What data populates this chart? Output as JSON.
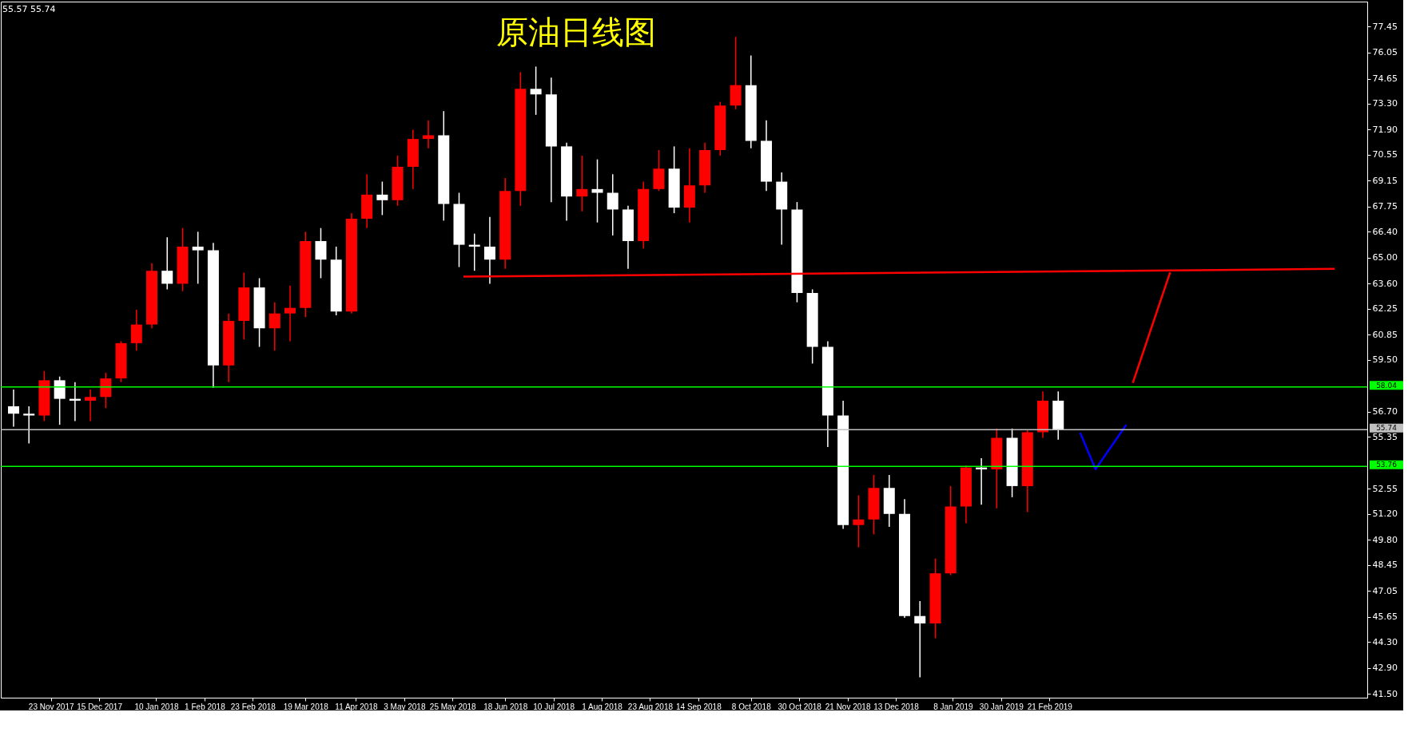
{
  "chart_data": {
    "type": "candlestick",
    "title": "原油日线图",
    "x": [
      "2017-11-06",
      "2017-11-13",
      "2017-11-20",
      "2017-11-27",
      "2017-12-04",
      "2017-12-11",
      "2017-12-18",
      "2017-12-25",
      "2018-01-01",
      "2018-01-08",
      "2018-01-15",
      "2018-01-22",
      "2018-01-29",
      "2018-02-05",
      "2018-02-12",
      "2018-02-19",
      "2018-02-26",
      "2018-03-05",
      "2018-03-12",
      "2018-03-19",
      "2018-03-26",
      "2018-04-02",
      "2018-04-09",
      "2018-04-16",
      "2018-04-23",
      "2018-04-30",
      "2018-05-07",
      "2018-05-14",
      "2018-05-21",
      "2018-05-28",
      "2018-06-04",
      "2018-06-11",
      "2018-06-18",
      "2018-06-25",
      "2018-07-02",
      "2018-07-09",
      "2018-07-16",
      "2018-07-23",
      "2018-07-30",
      "2018-08-06",
      "2018-08-13",
      "2018-08-20",
      "2018-08-27",
      "2018-09-03",
      "2018-09-10",
      "2018-09-17",
      "2018-09-24",
      "2018-10-01",
      "2018-10-08",
      "2018-10-15",
      "2018-10-22",
      "2018-10-29",
      "2018-11-05",
      "2018-11-12",
      "2018-11-19",
      "2018-11-26",
      "2018-12-03",
      "2018-12-10",
      "2018-12-17",
      "2018-12-24",
      "2018-12-31",
      "2019-01-07",
      "2019-01-14",
      "2019-01-21",
      "2019-01-28",
      "2019-02-04",
      "2019-02-11",
      "2019-02-18",
      "2019-02-25"
    ],
    "ohlc": [
      [
        57.0,
        57.9,
        55.9,
        56.6
      ],
      [
        56.6,
        57.0,
        55.0,
        56.5
      ],
      [
        56.5,
        58.9,
        56.2,
        58.4
      ],
      [
        58.4,
        58.6,
        56.0,
        57.4
      ],
      [
        57.4,
        58.3,
        56.2,
        57.3
      ],
      [
        57.3,
        57.9,
        56.2,
        57.5
      ],
      [
        57.5,
        58.8,
        56.9,
        58.5
      ],
      [
        58.5,
        60.5,
        58.3,
        60.4
      ],
      [
        60.4,
        62.2,
        60.0,
        61.4
      ],
      [
        61.4,
        64.7,
        61.2,
        64.3
      ],
      [
        64.3,
        66.1,
        63.3,
        63.6
      ],
      [
        63.6,
        66.6,
        63.2,
        65.6
      ],
      [
        65.6,
        66.4,
        63.6,
        65.4
      ],
      [
        65.4,
        65.8,
        58.0,
        59.2
      ],
      [
        59.2,
        62.0,
        58.3,
        61.6
      ],
      [
        61.6,
        64.2,
        60.6,
        63.4
      ],
      [
        63.4,
        63.9,
        60.2,
        61.2
      ],
      [
        61.2,
        62.6,
        60.0,
        62.0
      ],
      [
        62.0,
        63.5,
        60.5,
        62.3
      ],
      [
        62.3,
        66.4,
        61.8,
        65.9
      ],
      [
        65.9,
        66.6,
        63.9,
        64.9
      ],
      [
        64.9,
        65.6,
        61.9,
        62.1
      ],
      [
        62.1,
        67.4,
        62.0,
        67.1
      ],
      [
        67.1,
        69.5,
        66.6,
        68.4
      ],
      [
        68.4,
        69.1,
        67.3,
        68.1
      ],
      [
        68.1,
        70.5,
        67.8,
        69.9
      ],
      [
        69.9,
        71.9,
        68.7,
        71.4
      ],
      [
        71.4,
        72.4,
        70.9,
        71.6
      ],
      [
        71.6,
        72.9,
        67.0,
        67.9
      ],
      [
        67.9,
        68.5,
        64.5,
        65.7
      ],
      [
        65.7,
        66.3,
        64.3,
        65.6
      ],
      [
        65.6,
        67.2,
        63.6,
        64.9
      ],
      [
        64.9,
        69.3,
        64.4,
        68.6
      ],
      [
        68.6,
        75.0,
        67.8,
        74.1
      ],
      [
        74.1,
        75.3,
        72.7,
        73.8
      ],
      [
        73.8,
        74.7,
        68.0,
        71.0
      ],
      [
        71.0,
        71.2,
        67.0,
        68.3
      ],
      [
        68.3,
        70.5,
        67.5,
        68.7
      ],
      [
        68.7,
        70.3,
        66.9,
        68.5
      ],
      [
        68.5,
        69.5,
        66.2,
        67.6
      ],
      [
        67.6,
        67.8,
        64.4,
        65.9
      ],
      [
        65.9,
        69.1,
        65.5,
        68.7
      ],
      [
        68.7,
        70.8,
        68.6,
        69.8
      ],
      [
        69.8,
        71.0,
        67.4,
        67.7
      ],
      [
        67.7,
        70.9,
        66.9,
        68.9
      ],
      [
        68.9,
        71.2,
        68.5,
        70.8
      ],
      [
        70.8,
        73.4,
        70.5,
        73.2
      ],
      [
        73.2,
        76.9,
        73.0,
        74.3
      ],
      [
        74.3,
        75.9,
        70.9,
        71.3
      ],
      [
        71.3,
        72.4,
        68.6,
        69.1
      ],
      [
        69.1,
        69.6,
        65.7,
        67.6
      ],
      [
        67.6,
        68.0,
        62.6,
        63.1
      ],
      [
        63.1,
        63.3,
        59.3,
        60.2
      ],
      [
        60.2,
        60.5,
        54.8,
        56.5
      ],
      [
        56.5,
        57.3,
        50.4,
        50.6
      ],
      [
        50.6,
        52.2,
        49.4,
        50.9
      ],
      [
        50.9,
        53.3,
        50.1,
        52.6
      ],
      [
        52.6,
        53.3,
        50.5,
        51.2
      ],
      [
        51.2,
        52.0,
        45.6,
        45.7
      ],
      [
        45.7,
        46.5,
        42.4,
        45.3
      ],
      [
        45.3,
        48.8,
        44.5,
        48.0
      ],
      [
        48.0,
        52.7,
        47.9,
        51.6
      ],
      [
        51.6,
        53.8,
        50.7,
        53.7
      ],
      [
        53.7,
        54.2,
        51.7,
        53.6
      ],
      [
        53.6,
        55.8,
        51.5,
        55.3
      ],
      [
        55.3,
        55.8,
        52.1,
        52.7
      ],
      [
        52.7,
        55.7,
        51.3,
        55.6
      ],
      [
        55.6,
        57.8,
        55.3,
        57.3
      ],
      [
        57.3,
        57.8,
        55.2,
        55.74
      ]
    ],
    "colors": [
      "#ffffff",
      "#ffffff",
      "#ff0000",
      "#ffffff",
      "#ffffff",
      "#ff0000",
      "#ff0000",
      "#ff0000",
      "#ff0000",
      "#ff0000",
      "#ffffff",
      "#ff0000",
      "#ffffff",
      "#ffffff",
      "#ff0000",
      "#ff0000",
      "#ffffff",
      "#ff0000",
      "#ff0000",
      "#ff0000",
      "#ffffff",
      "#ffffff",
      "#ff0000",
      "#ff0000",
      "#ffffff",
      "#ff0000",
      "#ff0000",
      "#ff0000",
      "#ffffff",
      "#ffffff",
      "#ffffff",
      "#ffffff",
      "#ff0000",
      "#ff0000",
      "#ffffff",
      "#ffffff",
      "#ffffff",
      "#ff0000",
      "#ffffff",
      "#ffffff",
      "#ffffff",
      "#ff0000",
      "#ff0000",
      "#ffffff",
      "#ff0000",
      "#ff0000",
      "#ff0000",
      "#ff0000",
      "#ffffff",
      "#ffffff",
      "#ffffff",
      "#ffffff",
      "#ffffff",
      "#ffffff",
      "#ffffff",
      "#ff0000",
      "#ff0000",
      "#ffffff",
      "#ffffff",
      "#ffffff",
      "#ff0000",
      "#ff0000",
      "#ff0000",
      "#ffffff",
      "#ff0000",
      "#ffffff",
      "#ff0000",
      "#ff0000",
      "#ffffff"
    ],
    "series": [
      {
        "type": "line",
        "color": "#ff0000",
        "x": [
          "2018-05-30",
          "2019-07-01"
        ],
        "values": [
          63.98,
          64.4
        ]
      },
      {
        "type": "line",
        "color": "#ff0000",
        "x": [
          "2019-03-31",
          "2019-04-17"
        ],
        "values": [
          58.26,
          64.22
        ]
      },
      {
        "type": "line",
        "color": "#0000ff",
        "x": [
          "2019-03-07",
          "2019-03-14",
          "2019-03-28"
        ],
        "values": [
          55.58,
          53.61,
          56.0
        ]
      }
    ],
    "ref_lines": [
      {
        "axis": "y",
        "value": 58.04,
        "label": "58.04",
        "color": "#00ff00"
      },
      {
        "axis": "y",
        "value": 53.76,
        "label": "53.76",
        "color": "#00ff00"
      },
      {
        "axis": "y",
        "value": 55.74,
        "label": "55.74",
        "color": "#c0c0c0"
      }
    ],
    "annotations": [
      "55.57 55.74"
    ],
    "xlim": [
      "2017-11-02",
      "2019-07-14"
    ],
    "xticks": [
      {
        "value": "2017-11-23",
        "label": "23 Nov 2017"
      },
      {
        "value": "2017-12-15",
        "label": "15 Dec 2017"
      },
      {
        "value": "2018-01-10",
        "label": "10 Jan 2018"
      },
      {
        "value": "2018-02-01",
        "label": "1 Feb 2018"
      },
      {
        "value": "2018-02-23",
        "label": "23 Feb 2018"
      },
      {
        "value": "2018-03-19",
        "label": "19 Mar 2018"
      },
      {
        "value": "2018-04-11",
        "label": "11 Apr 2018"
      },
      {
        "value": "2018-05-03",
        "label": "3 May 2018"
      },
      {
        "value": "2018-05-25",
        "label": "25 May 2018"
      },
      {
        "value": "2018-06-18",
        "label": "18 Jun 2018"
      },
      {
        "value": "2018-07-10",
        "label": "10 Jul 2018"
      },
      {
        "value": "2018-08-01",
        "label": "1 Aug 2018"
      },
      {
        "value": "2018-08-23",
        "label": "23 Aug 2018"
      },
      {
        "value": "2018-09-14",
        "label": "14 Sep 2018"
      },
      {
        "value": "2018-10-08",
        "label": "8 Oct 2018"
      },
      {
        "value": "2018-10-30",
        "label": "30 Oct 2018"
      },
      {
        "value": "2018-11-21",
        "label": "21 Nov 2018"
      },
      {
        "value": "2018-12-13",
        "label": "13 Dec 2018"
      },
      {
        "value": "2019-01-08",
        "label": "8 Jan 2019"
      },
      {
        "value": "2019-01-30",
        "label": "30 Jan 2019"
      },
      {
        "value": "2019-02-21",
        "label": "21 Feb 2019"
      }
    ],
    "ylim": [
      41.3,
      78.8
    ],
    "yticks": [
      {
        "value": 41.5,
        "label": "41.50"
      },
      {
        "value": 42.9,
        "label": "42.90"
      },
      {
        "value": 44.3,
        "label": "44.30"
      },
      {
        "value": 45.65,
        "label": "45.65"
      },
      {
        "value": 47.05,
        "label": "47.05"
      },
      {
        "value": 48.45,
        "label": "48.45"
      },
      {
        "value": 49.8,
        "label": "49.80"
      },
      {
        "value": 51.2,
        "label": "51.20"
      },
      {
        "value": 52.55,
        "label": "52.55"
      },
      {
        "value": 55.35,
        "label": "55.35"
      },
      {
        "value": 56.7,
        "label": "56.70"
      },
      {
        "value": 59.5,
        "label": "59.50"
      },
      {
        "value": 60.85,
        "label": "60.85"
      },
      {
        "value": 62.25,
        "label": "62.25"
      },
      {
        "value": 63.6,
        "label": "63.60"
      },
      {
        "value": 65.0,
        "label": "65.00"
      },
      {
        "value": 66.4,
        "label": "66.40"
      },
      {
        "value": 67.75,
        "label": "67.75"
      },
      {
        "value": 69.15,
        "label": "69.15"
      },
      {
        "value": 70.55,
        "label": "70.55"
      },
      {
        "value": 71.9,
        "label": "71.90"
      },
      {
        "value": 73.3,
        "label": "73.30"
      },
      {
        "value": 74.65,
        "label": "74.65"
      },
      {
        "value": 76.05,
        "label": "76.05"
      },
      {
        "value": 77.45,
        "label": "77.45"
      }
    ],
    "grid": false
  }
}
